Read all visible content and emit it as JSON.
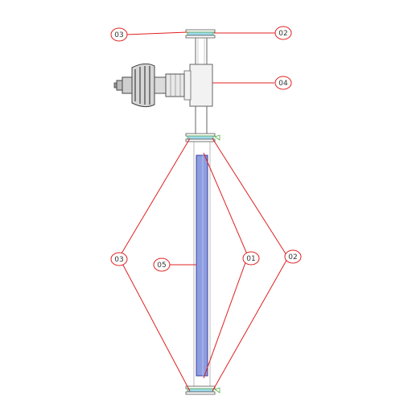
{
  "colors": {
    "leader": "#e02020",
    "tube_fill": "#8c9ee0",
    "tube_stroke": "#3a3fa0",
    "flange": "#9fd8f0",
    "flange_edge": "#50b040",
    "body_stroke": "#555555",
    "valve_fill": "#f2f2f2"
  },
  "callouts": {
    "top_left": "03",
    "top_right": "02",
    "valve": "04",
    "tube": "05",
    "inner_right": "01",
    "outer_right": "02",
    "outer_left": "03"
  }
}
